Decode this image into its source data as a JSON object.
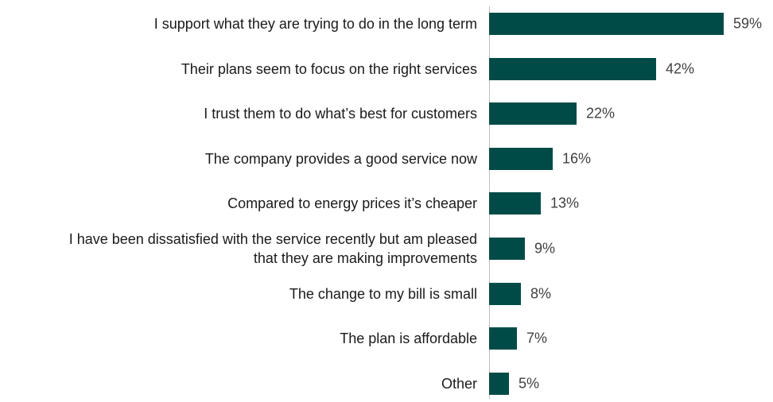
{
  "chart_data": {
    "type": "bar",
    "orientation": "horizontal",
    "categories": [
      "I support what they are trying to do in the long term",
      "Their plans seem to focus on the right services",
      "I trust them to do what’s best for customers",
      "The company provides a good service now",
      "Compared to energy prices it’s cheaper",
      "I have been dissatisfied with the service recently but am pleased\nthat they are making improvements",
      "The change to my bill is small",
      "The plan is affordable",
      "Other"
    ],
    "values": [
      59,
      42,
      22,
      16,
      13,
      9,
      8,
      7,
      5
    ],
    "value_labels": [
      "59%",
      "42%",
      "22%",
      "16%",
      "13%",
      "9%",
      "8%",
      "7%",
      "5%"
    ],
    "color": "#004b47"
  }
}
